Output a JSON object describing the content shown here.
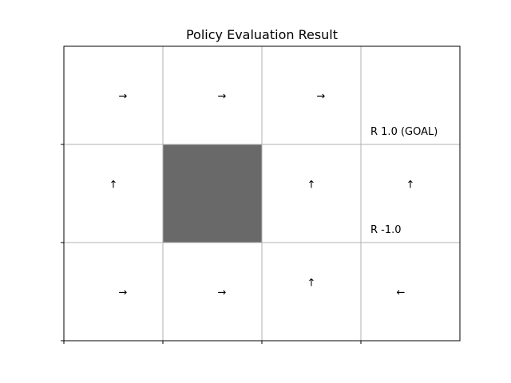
{
  "chart_data": {
    "type": "heatmap",
    "title": "Policy Evaluation Result",
    "xlabel": "",
    "ylabel": "",
    "grid": true,
    "columns": 4,
    "rows": 3,
    "wall_color": "#696969",
    "cells": [
      {
        "col": 0,
        "row": 0,
        "arrow": "→"
      },
      {
        "col": 1,
        "row": 0,
        "arrow": "→"
      },
      {
        "col": 2,
        "row": 0,
        "arrow": "→"
      },
      {
        "col": 3,
        "row": 0,
        "arrow": ""
      },
      {
        "col": 0,
        "row": 1,
        "arrow": "↑"
      },
      {
        "col": 1,
        "row": 1,
        "arrow": "",
        "wall": true
      },
      {
        "col": 2,
        "row": 1,
        "arrow": "↑"
      },
      {
        "col": 3,
        "row": 1,
        "arrow": "↑"
      },
      {
        "col": 0,
        "row": 2,
        "arrow": "→"
      },
      {
        "col": 1,
        "row": 2,
        "arrow": "→"
      },
      {
        "col": 2,
        "row": 2,
        "arrow": "↑"
      },
      {
        "col": 3,
        "row": 2,
        "arrow": "←"
      }
    ],
    "rewards": [
      {
        "col": 3,
        "row": 0,
        "label": "R 1.0 (GOAL)"
      },
      {
        "col": 3,
        "row": 1,
        "label": "R -1.0"
      }
    ]
  }
}
